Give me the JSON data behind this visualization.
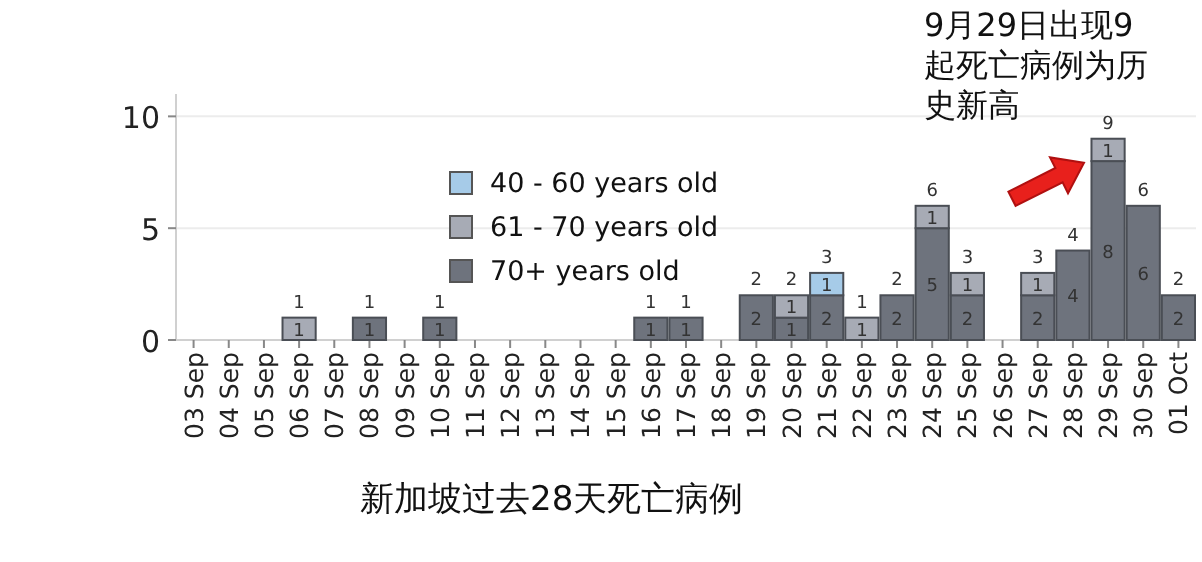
{
  "chart_data": {
    "type": "bar",
    "stacked": true,
    "categories": [
      "03 Sep",
      "04 Sep",
      "05 Sep",
      "06 Sep",
      "07 Sep",
      "08 Sep",
      "09 Sep",
      "10 Sep",
      "11 Sep",
      "12 Sep",
      "13 Sep",
      "14 Sep",
      "15 Sep",
      "16 Sep",
      "17 Sep",
      "18 Sep",
      "19 Sep",
      "20 Sep",
      "21 Sep",
      "22 Sep",
      "23 Sep",
      "24 Sep",
      "25 Sep",
      "26 Sep",
      "27 Sep",
      "28 Sep",
      "29 Sep",
      "30 Sep",
      "01 Oct"
    ],
    "series": [
      {
        "name": "70+ years old",
        "color": "#6e737d",
        "values": [
          null,
          null,
          null,
          null,
          null,
          1,
          null,
          1,
          null,
          null,
          null,
          null,
          null,
          1,
          1,
          null,
          2,
          1,
          2,
          null,
          2,
          5,
          2,
          null,
          2,
          4,
          8,
          6,
          2
        ]
      },
      {
        "name": "61 - 70 years old",
        "color": "#a7abb5",
        "values": [
          null,
          null,
          null,
          1,
          null,
          null,
          null,
          null,
          null,
          null,
          null,
          null,
          null,
          null,
          null,
          null,
          null,
          1,
          null,
          1,
          null,
          1,
          1,
          null,
          1,
          null,
          1,
          null,
          null
        ]
      },
      {
        "name": "40 - 60 years old",
        "color": "#a6cbe8",
        "values": [
          null,
          null,
          null,
          null,
          null,
          null,
          null,
          null,
          null,
          null,
          null,
          null,
          null,
          null,
          null,
          null,
          null,
          null,
          1,
          null,
          null,
          null,
          null,
          null,
          null,
          null,
          null,
          null,
          null
        ]
      }
    ],
    "totals": [
      null,
      null,
      null,
      "1",
      null,
      "1",
      null,
      "1",
      null,
      null,
      null,
      null,
      null,
      "1",
      "1",
      null,
      "2",
      "2",
      "3",
      "1",
      "2",
      "6",
      "3",
      null,
      "3",
      "4",
      "9",
      "6",
      "2"
    ],
    "data_labels": true,
    "ylim": [
      0,
      11
    ],
    "yticks": [
      0,
      5,
      10
    ],
    "grid": "y",
    "legend": "center",
    "annotations": [
      {
        "text": "9月29日出现9起死亡病例为历史新高",
        "x": "29 Sep",
        "y": 9
      },
      "新加坡过去28天死亡病例"
    ]
  }
}
